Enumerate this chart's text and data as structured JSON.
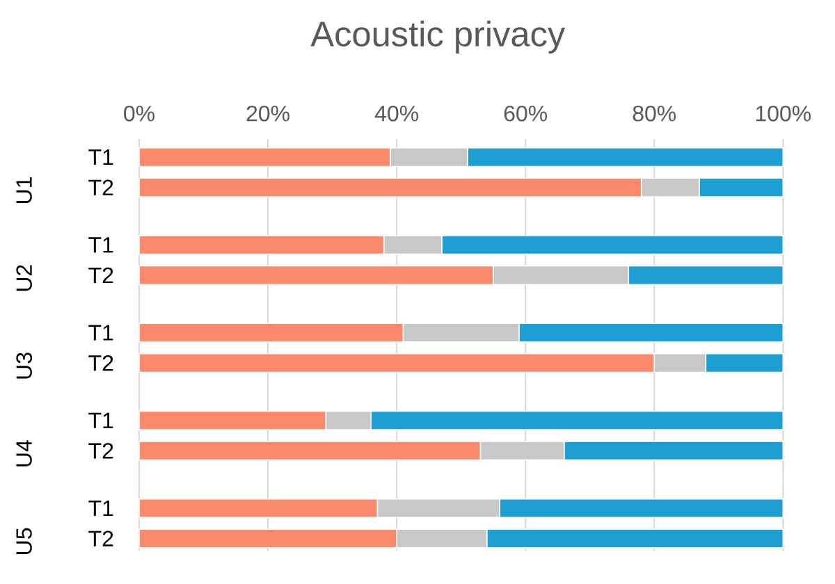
{
  "chart_data": {
    "type": "bar",
    "orientation": "horizontal",
    "stacked": true,
    "title": "Acoustic privacy",
    "categories": [
      "T1",
      "T2",
      "T1",
      "T2",
      "T1",
      "T2",
      "T1",
      "T2",
      "T1",
      "T2"
    ],
    "annotations": [
      "U1",
      "U2",
      "U3",
      "U4",
      "U5"
    ],
    "series": [
      {
        "color": "#fa8a6b",
        "values": [
          39,
          78,
          38,
          55,
          41,
          80,
          29,
          53,
          37,
          40
        ]
      },
      {
        "color": "#c8c8c8",
        "values": [
          12,
          9,
          9,
          21,
          18,
          8,
          7,
          13,
          19,
          14
        ]
      },
      {
        "color": "#1e9fd4",
        "values": [
          49,
          13,
          53,
          24,
          41,
          12,
          64,
          34,
          44,
          46
        ]
      }
    ],
    "xlim": [
      0,
      100
    ],
    "xticks": [
      {
        "value": 0,
        "label": "0%"
      },
      {
        "value": 20,
        "label": "20%"
      },
      {
        "value": 40,
        "label": "40%"
      },
      {
        "value": 60,
        "label": "60%"
      },
      {
        "value": 80,
        "label": "80%"
      },
      {
        "value": 100,
        "label": "100%"
      }
    ],
    "grid": "x"
  }
}
